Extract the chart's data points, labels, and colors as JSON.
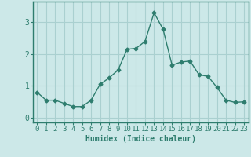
{
  "x": [
    0,
    1,
    2,
    3,
    4,
    5,
    6,
    7,
    8,
    9,
    10,
    11,
    12,
    13,
    14,
    15,
    16,
    17,
    18,
    19,
    20,
    21,
    22,
    23
  ],
  "y": [
    0.8,
    0.55,
    0.55,
    0.45,
    0.35,
    0.35,
    0.55,
    1.05,
    1.25,
    1.5,
    2.15,
    2.18,
    2.4,
    3.3,
    2.78,
    1.65,
    1.75,
    1.78,
    1.35,
    1.3,
    0.95,
    0.55,
    0.48,
    0.5
  ],
  "xlabel": "Humidex (Indice chaleur)",
  "xlim": [
    -0.5,
    23.5
  ],
  "ylim": [
    -0.15,
    3.65
  ],
  "yticks": [
    0,
    1,
    2,
    3
  ],
  "xticks": [
    0,
    1,
    2,
    3,
    4,
    5,
    6,
    7,
    8,
    9,
    10,
    11,
    12,
    13,
    14,
    15,
    16,
    17,
    18,
    19,
    20,
    21,
    22,
    23
  ],
  "line_color": "#2e7d6e",
  "marker": "D",
  "marker_size": 2.5,
  "bg_color": "#cce8e8",
  "grid_color": "#aad0d0",
  "axis_color": "#2e7d6e",
  "xlabel_fontsize": 7,
  "tick_fontsize": 6.5
}
